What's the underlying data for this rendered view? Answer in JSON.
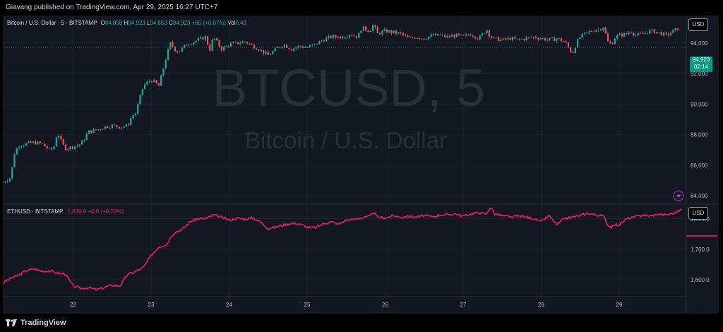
{
  "header": {
    "publish_text": "Giavang published on TradingView.com, Apr 29, 2025 16:27 UTC+7"
  },
  "footer": {
    "brand": "TradingView"
  },
  "colors": {
    "background": "#131722",
    "up": "#26a69a",
    "down": "#ef5350",
    "eth_line": "#e91e63",
    "grid": "#1e222d",
    "axis_text": "#b2b5be"
  },
  "top_pane": {
    "symbol": "Bitcoin / U.S. Dollar · 5 · BITSTAMP",
    "o_label": "O",
    "o": "94,858",
    "h_label": "H",
    "h": "94,923",
    "l_label": "L",
    "l": "94,853",
    "c_label": "C",
    "c": "94,923",
    "change": "+65 (+0.07%)",
    "vol_label": "Vol",
    "vol": "0.49",
    "watermark_title": "BTCUSD, 5",
    "watermark_subtitle": "Bitcoin / U.S. Dollar",
    "unit": "USD",
    "last_price": "94,923",
    "countdown": "02:14"
  },
  "bottom_pane": {
    "symbol": "ETHUSD · BITSTAMP",
    "value": "1,830.0",
    "change": "+4.0 (+0.22%)",
    "unit": "USD"
  },
  "chart_data": [
    {
      "type": "candlestick",
      "title": "Bitcoin / U.S. Dollar · 5 · BITSTAMP",
      "ylim": [
        83500,
        95800
      ],
      "y_ticks": [
        "84,000",
        "86,000",
        "88,000",
        "90,000",
        "92,000",
        "94,000"
      ],
      "y_tick_values": [
        84000,
        86000,
        88000,
        90000,
        92000,
        94000
      ],
      "x_tick_labels": [
        "22",
        "23",
        "24",
        "25",
        "26",
        "27",
        "28",
        "29"
      ],
      "x_tick_values": [
        22,
        23,
        24,
        25,
        26,
        27,
        28,
        29
      ],
      "xlim": [
        21.1,
        29.86
      ],
      "grid": true,
      "series": [
        {
          "name": "BTCUSD",
          "x": [
            21.1,
            21.2,
            21.25,
            21.3,
            21.5,
            21.6,
            21.7,
            21.75,
            21.8,
            21.85,
            21.9,
            22.0,
            22.1,
            22.2,
            22.3,
            22.4,
            22.5,
            22.6,
            22.7,
            22.75,
            22.8,
            22.9,
            23.0,
            23.1,
            23.2,
            23.25,
            23.3,
            23.35,
            23.45,
            23.55,
            23.7,
            23.75,
            23.8,
            23.9,
            24.0,
            24.1,
            24.2,
            24.35,
            24.5,
            24.6,
            24.7,
            24.8,
            24.9,
            25.0,
            25.1,
            25.2,
            25.3,
            25.45,
            25.55,
            25.65,
            25.7,
            25.8,
            25.85,
            25.9,
            26.0,
            26.1,
            26.2,
            26.3,
            26.4,
            26.5,
            26.6,
            26.7,
            26.8,
            26.9,
            27.0,
            27.1,
            27.2,
            27.3,
            27.35,
            27.4,
            27.5,
            27.6,
            27.7,
            27.8,
            27.9,
            28.0,
            28.1,
            28.2,
            28.3,
            28.4,
            28.45,
            28.5,
            28.6,
            28.7,
            28.75,
            28.8,
            28.85,
            28.9,
            28.95,
            29.0,
            29.1,
            29.15,
            29.2,
            29.3,
            29.4,
            29.5,
            29.6,
            29.7,
            29.75
          ],
          "y": [
            84900,
            85200,
            86800,
            87300,
            87500,
            87400,
            87000,
            87100,
            88200,
            87500,
            87100,
            87200,
            87400,
            88200,
            88300,
            88500,
            88600,
            88500,
            88600,
            89200,
            89400,
            91200,
            91600,
            91200,
            93200,
            94000,
            93600,
            93400,
            93900,
            94100,
            94400,
            93500,
            94400,
            93600,
            93900,
            94000,
            94100,
            93700,
            93200,
            93600,
            93900,
            93600,
            93800,
            93700,
            93900,
            94200,
            94400,
            94400,
            94600,
            94400,
            95000,
            94800,
            95200,
            94600,
            94800,
            94700,
            94600,
            94300,
            94400,
            94300,
            94500,
            94500,
            94400,
            94500,
            94400,
            94600,
            94300,
            94900,
            94400,
            94300,
            94200,
            94300,
            94200,
            94300,
            94400,
            94300,
            94200,
            94300,
            94100,
            93300,
            94000,
            94400,
            94700,
            94900,
            94900,
            95100,
            94100,
            93900,
            94400,
            94500,
            94600,
            94800,
            94500,
            94600,
            94800,
            94700,
            94500,
            94800,
            94923
          ]
        }
      ]
    },
    {
      "type": "line",
      "title": "ETHUSD · BITSTAMP",
      "ylim": [
        1545,
        1845
      ],
      "y_ticks": [
        "1,600.0",
        "1,700.0",
        "1,800.0"
      ],
      "y_tick_values": [
        1600,
        1700,
        1800
      ],
      "xlim": [
        21.1,
        29.86
      ],
      "grid": true,
      "series": [
        {
          "name": "ETHUSD",
          "x": [
            21.1,
            21.2,
            21.3,
            21.4,
            21.5,
            21.6,
            21.7,
            21.8,
            21.9,
            22.0,
            22.1,
            22.2,
            22.3,
            22.4,
            22.5,
            22.6,
            22.7,
            22.75,
            22.8,
            22.9,
            23.0,
            23.1,
            23.2,
            23.25,
            23.3,
            23.4,
            23.5,
            23.6,
            23.7,
            23.8,
            23.9,
            24.0,
            24.1,
            24.2,
            24.3,
            24.4,
            24.5,
            24.6,
            24.7,
            24.8,
            24.9,
            25.0,
            25.1,
            25.2,
            25.3,
            25.4,
            25.5,
            25.6,
            25.7,
            25.8,
            25.85,
            25.9,
            26.0,
            26.1,
            26.2,
            26.3,
            26.4,
            26.5,
            26.6,
            26.7,
            26.8,
            26.9,
            27.0,
            27.1,
            27.2,
            27.3,
            27.35,
            27.4,
            27.5,
            27.6,
            27.7,
            27.8,
            27.9,
            28.0,
            28.1,
            28.2,
            28.3,
            28.4,
            28.5,
            28.6,
            28.7,
            28.8,
            28.85,
            28.9,
            28.95,
            29.0,
            29.1,
            29.2,
            29.3,
            29.4,
            29.5,
            29.6,
            29.7,
            29.8
          ],
          "y": [
            1590,
            1605,
            1615,
            1630,
            1636,
            1628,
            1630,
            1622,
            1620,
            1580,
            1572,
            1575,
            1568,
            1575,
            1583,
            1580,
            1618,
            1622,
            1628,
            1640,
            1680,
            1708,
            1715,
            1740,
            1755,
            1765,
            1790,
            1800,
            1800,
            1812,
            1805,
            1795,
            1802,
            1798,
            1803,
            1790,
            1768,
            1772,
            1780,
            1785,
            1783,
            1772,
            1770,
            1782,
            1790,
            1782,
            1795,
            1798,
            1803,
            1806,
            1822,
            1805,
            1802,
            1810,
            1805,
            1808,
            1805,
            1810,
            1806,
            1812,
            1812,
            1816,
            1808,
            1815,
            1820,
            1815,
            1840,
            1816,
            1810,
            1805,
            1808,
            1806,
            1800,
            1790,
            1810,
            1780,
            1800,
            1805,
            1810,
            1818,
            1812,
            1808,
            1780,
            1772,
            1780,
            1780,
            1800,
            1805,
            1812,
            1808,
            1815,
            1812,
            1818,
            1830
          ]
        }
      ]
    }
  ]
}
